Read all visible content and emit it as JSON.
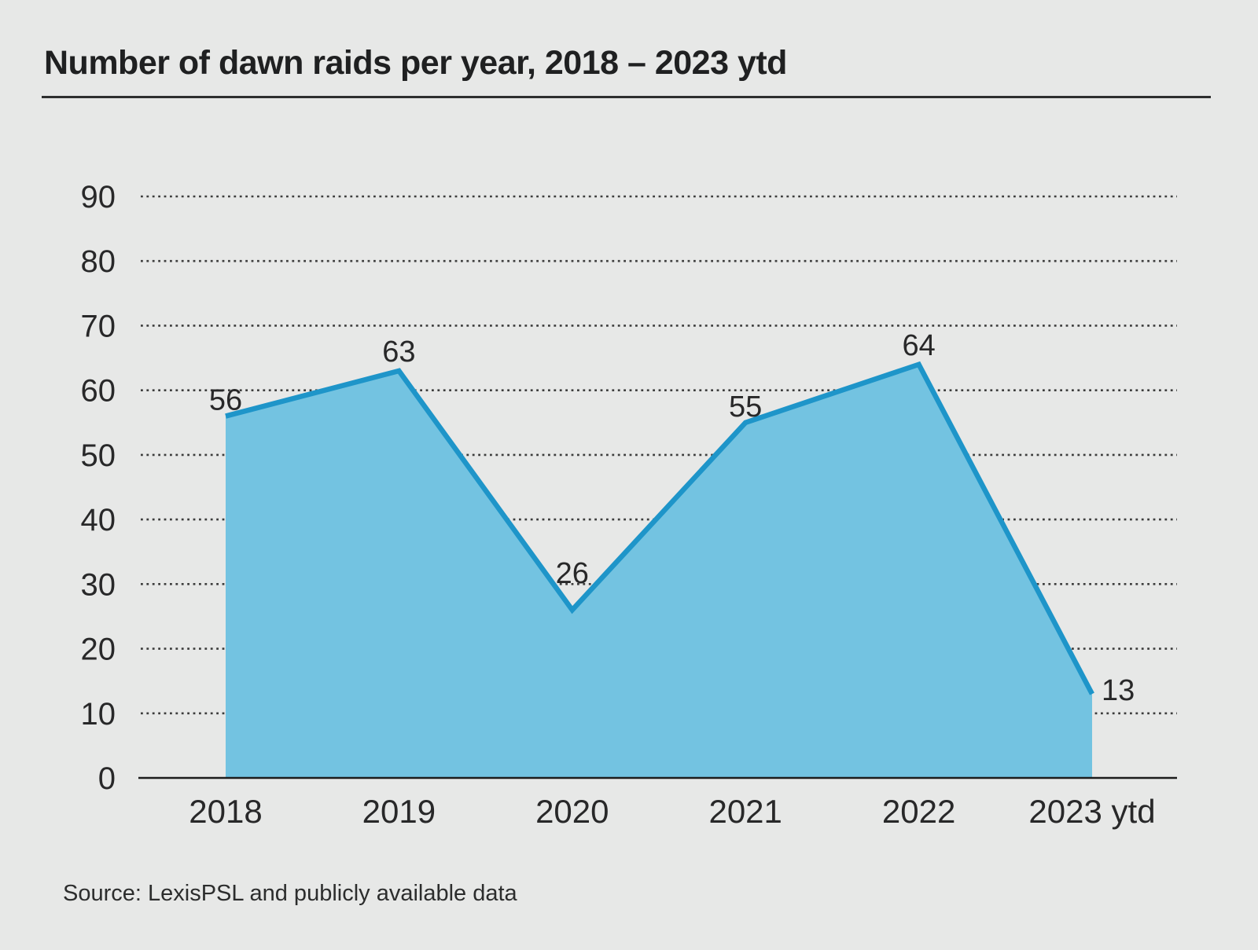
{
  "title": "Number of dawn raids per year, 2018 – 2023 ytd",
  "source": "Source: LexisPSL and publicly available data",
  "chart_data": {
    "type": "area",
    "title": "Number of dawn raids per year, 2018 – 2023 ytd",
    "categories": [
      "2018",
      "2019",
      "2020",
      "2021",
      "2022",
      "2023 ytd"
    ],
    "values": [
      56,
      63,
      26,
      55,
      64,
      13
    ],
    "xlabel": "",
    "ylabel": "",
    "ylim": [
      0,
      90
    ],
    "ytick_step": 10,
    "yticks": [
      0,
      10,
      20,
      30,
      40,
      50,
      60,
      70,
      80,
      90
    ],
    "grid": "horizontal-dotted",
    "legend": "none",
    "colors": {
      "background": "#e7e8e7",
      "fill": "#73c3e1",
      "stroke": "#1e95c9",
      "grid": "#3d3d3d",
      "axis": "#1c1c1c",
      "text": "#282829"
    }
  }
}
